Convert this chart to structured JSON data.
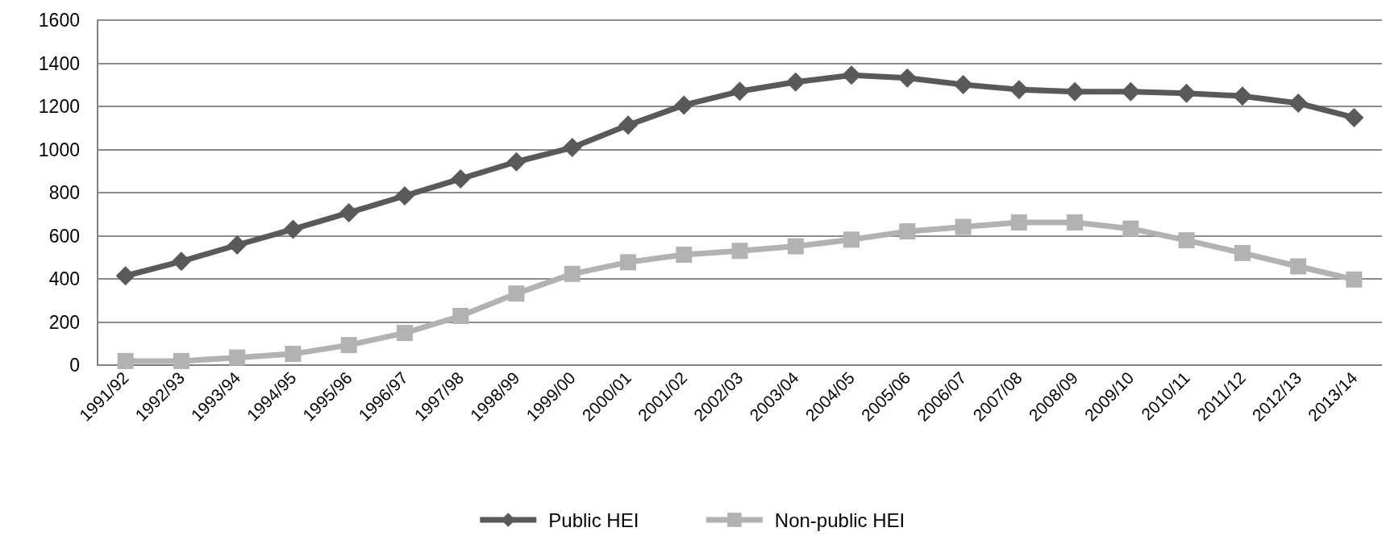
{
  "chart_data": {
    "type": "line",
    "categories": [
      "1991/92",
      "1992/93",
      "1993/94",
      "1994/95",
      "1995/96",
      "1996/97",
      "1997/98",
      "1998/99",
      "1999/00",
      "2000/01",
      "2001/02",
      "2002/03",
      "2003/04",
      "2004/05",
      "2005/06",
      "2006/07",
      "2007/08",
      "2008/09",
      "2009/10",
      "2010/11",
      "2011/12",
      "2012/13",
      "2013/14"
    ],
    "series": [
      {
        "name": "Public HEI",
        "color": "#595959",
        "marker": "diamond",
        "values": [
          414,
          481,
          557,
          630,
          707,
          785,
          864,
          943,
          1009,
          1113,
          1206,
          1270,
          1313,
          1345,
          1332,
          1301,
          1278,
          1268,
          1268,
          1261,
          1248,
          1215,
          1148
        ]
      },
      {
        "name": "Non-public HEI",
        "color": "#b2b2b2",
        "marker": "square",
        "values": [
          19,
          19,
          35,
          52,
          93,
          149,
          228,
          332,
          423,
          477,
          512,
          530,
          551,
          582,
          620,
          641,
          662,
          662,
          633,
          579,
          520,
          458,
          397
        ]
      }
    ],
    "ylim": [
      0,
      1600
    ],
    "yticks": [
      0,
      200,
      400,
      600,
      800,
      1000,
      1200,
      1400,
      1600
    ],
    "grid": "y",
    "legend": "bottom",
    "line_style": "solid"
  }
}
